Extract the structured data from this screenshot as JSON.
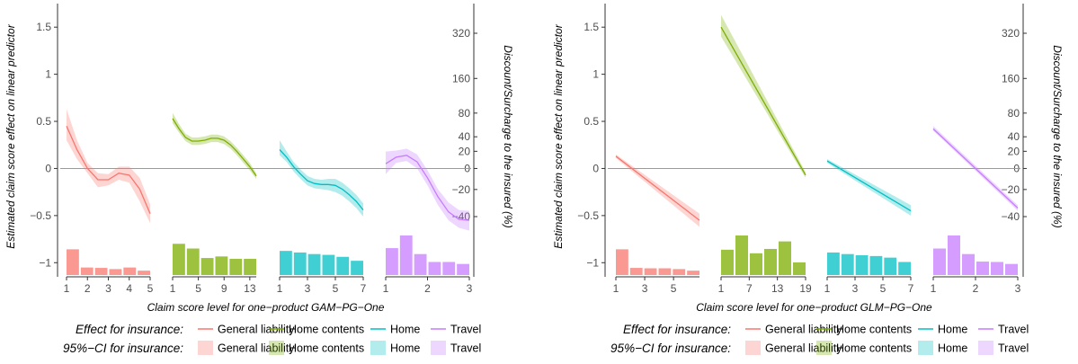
{
  "colors": {
    "General liability": "#F8766D",
    "Home contents": "#7CAE00",
    "Home": "#00BFC4",
    "Travel": "#C77CFF",
    "zero_line": "#9a9a9a",
    "axis": "#333333",
    "text": "#4d4d4d"
  },
  "legend": {
    "effect_title": "Effect for insurance:",
    "ci_title": "95%−CI for insurance:",
    "items": [
      "General liability",
      "Home contents",
      "Home",
      "Travel"
    ]
  },
  "chart_data": [
    {
      "type": "line",
      "xlabel": "Claim score level for one−product GAM−PG−One",
      "ylabel": "Estimated claim score effect on linear predictor",
      "ylabel_right": "Discount/Surcharge to the insured (%)",
      "ylim": [
        -1.15,
        1.75
      ],
      "yticks": [
        "−1",
        "−0.5",
        "0",
        "0.5",
        "1",
        "1.5"
      ],
      "yticks_values": [
        -1,
        -0.5,
        0,
        0.5,
        1,
        1.5
      ],
      "right_ticks": [
        "−40",
        "−20",
        "0",
        "20",
        "40",
        "80",
        "160",
        "320"
      ],
      "right_ticks_values": [
        -40,
        -20,
        0,
        20,
        40,
        80,
        160,
        320
      ],
      "grid": false,
      "legend_position": "bottom",
      "panels": [
        {
          "series": "General liability",
          "xrange": [
            1,
            5
          ],
          "xticks": [
            1,
            2,
            3,
            4,
            5
          ],
          "x": [
            1,
            1.5,
            2,
            2.5,
            3,
            3.5,
            4,
            4.5,
            5
          ],
          "y": [
            0.45,
            0.2,
            0.0,
            -0.12,
            -0.12,
            -0.05,
            -0.07,
            -0.22,
            -0.48
          ],
          "ci_lower": [
            0.3,
            0.1,
            -0.05,
            -0.2,
            -0.18,
            -0.12,
            -0.15,
            -0.35,
            -0.58
          ],
          "ci_upper": [
            0.63,
            0.3,
            0.06,
            -0.05,
            -0.06,
            0.02,
            0.02,
            -0.1,
            -0.38
          ],
          "bars": [
            0.65,
            0.19,
            0.18,
            0.15,
            0.19,
            0.11
          ]
        },
        {
          "series": "Home contents",
          "xrange": [
            1,
            14
          ],
          "xticks": [
            1,
            5,
            9,
            13
          ],
          "x": [
            1,
            2,
            3,
            4,
            5,
            6,
            7,
            8,
            9,
            10,
            11,
            12,
            13,
            14
          ],
          "y": [
            0.53,
            0.42,
            0.33,
            0.29,
            0.29,
            0.3,
            0.32,
            0.32,
            0.3,
            0.25,
            0.18,
            0.1,
            0.02,
            -0.08
          ],
          "ci_lower": [
            0.48,
            0.38,
            0.29,
            0.25,
            0.25,
            0.26,
            0.28,
            0.28,
            0.26,
            0.21,
            0.14,
            0.06,
            -0.02,
            -0.11
          ],
          "ci_upper": [
            0.59,
            0.47,
            0.37,
            0.33,
            0.33,
            0.34,
            0.36,
            0.36,
            0.34,
            0.29,
            0.22,
            0.14,
            0.06,
            -0.05
          ],
          "bars": [
            0.79,
            0.67,
            0.43,
            0.47,
            0.41,
            0.41
          ]
        },
        {
          "series": "Home",
          "xrange": [
            1,
            7
          ],
          "xticks": [
            1,
            3,
            5,
            7
          ],
          "x": [
            1,
            1.5,
            2,
            2.5,
            3,
            3.5,
            4,
            4.5,
            5,
            5.5,
            6,
            6.5,
            7
          ],
          "y": [
            0.2,
            0.12,
            0.02,
            -0.06,
            -0.13,
            -0.16,
            -0.17,
            -0.17,
            -0.18,
            -0.22,
            -0.28,
            -0.35,
            -0.44
          ],
          "ci_lower": [
            0.14,
            0.07,
            -0.03,
            -0.11,
            -0.18,
            -0.21,
            -0.22,
            -0.23,
            -0.25,
            -0.29,
            -0.35,
            -0.42,
            -0.51
          ],
          "ci_upper": [
            0.3,
            0.18,
            0.07,
            -0.01,
            -0.08,
            -0.11,
            -0.12,
            -0.11,
            -0.11,
            -0.15,
            -0.21,
            -0.28,
            -0.37
          ],
          "bars": [
            0.61,
            0.57,
            0.53,
            0.51,
            0.46,
            0.36
          ]
        },
        {
          "series": "Travel",
          "xrange": [
            1,
            3
          ],
          "xticks": [
            1,
            2,
            3
          ],
          "x": [
            1,
            1.25,
            1.5,
            1.75,
            2,
            2.25,
            2.5,
            2.75,
            3
          ],
          "y": [
            0.05,
            0.12,
            0.14,
            0.07,
            -0.1,
            -0.3,
            -0.46,
            -0.54,
            -0.55
          ],
          "ci_lower": [
            -0.06,
            0.06,
            0.08,
            0.0,
            -0.18,
            -0.39,
            -0.55,
            -0.63,
            -0.66
          ],
          "ci_upper": [
            0.18,
            0.19,
            0.21,
            0.15,
            -0.02,
            -0.22,
            -0.36,
            -0.44,
            -0.45
          ],
          "bars": [
            0.68,
            1.0,
            0.53,
            0.33,
            0.33,
            0.28
          ]
        }
      ]
    },
    {
      "type": "line",
      "xlabel": "Claim score level for one−product GLM−PG−One",
      "ylabel": "Estimated claim score effect on linear predictor",
      "ylabel_right": "Discount/Surcharge to the insured (%)",
      "ylim": [
        -1.15,
        1.75
      ],
      "yticks": [
        "−1",
        "−0.5",
        "0",
        "0.5",
        "1",
        "1.5"
      ],
      "yticks_values": [
        -1,
        -0.5,
        0,
        0.5,
        1,
        1.5
      ],
      "right_ticks": [
        "−40",
        "−20",
        "0",
        "20",
        "40",
        "80",
        "160",
        "320"
      ],
      "right_ticks_values": [
        -40,
        -20,
        0,
        20,
        40,
        80,
        160,
        320
      ],
      "grid": false,
      "legend_position": "bottom",
      "panels": [
        {
          "series": "General liability",
          "xrange": [
            1,
            6.8
          ],
          "xticks": [
            1,
            3,
            5
          ],
          "x": [
            1,
            6.8
          ],
          "y": [
            0.13,
            -0.55
          ],
          "ci_lower": [
            0.11,
            -0.62
          ],
          "ci_upper": [
            0.15,
            -0.48
          ],
          "bars": [
            0.65,
            0.18,
            0.17,
            0.17,
            0.15,
            0.11
          ]
        },
        {
          "series": "Home contents",
          "xrange": [
            1,
            19
          ],
          "xticks": [
            1,
            7,
            13,
            19
          ],
          "x": [
            1,
            19
          ],
          "y": [
            1.5,
            -0.07
          ],
          "ci_lower": [
            1.4,
            -0.1
          ],
          "ci_upper": [
            1.63,
            -0.04
          ],
          "bars": [
            0.64,
            1.0,
            0.55,
            0.66,
            0.85,
            0.32
          ]
        },
        {
          "series": "Home",
          "xrange": [
            1,
            7
          ],
          "xticks": [
            1,
            3,
            5,
            7
          ],
          "x": [
            1,
            7
          ],
          "y": [
            0.08,
            -0.45
          ],
          "ci_lower": [
            0.06,
            -0.5
          ],
          "ci_upper": [
            0.1,
            -0.39
          ],
          "bars": [
            0.57,
            0.53,
            0.5,
            0.48,
            0.44,
            0.33
          ]
        },
        {
          "series": "Travel",
          "xrange": [
            1,
            3
          ],
          "xticks": [
            1,
            2,
            3
          ],
          "x": [
            1,
            3
          ],
          "y": [
            0.42,
            -0.42
          ],
          "ci_lower": [
            0.4,
            -0.45
          ],
          "ci_upper": [
            0.45,
            -0.39
          ],
          "bars": [
            0.67,
            1.0,
            0.53,
            0.34,
            0.33,
            0.28
          ]
        }
      ]
    }
  ]
}
